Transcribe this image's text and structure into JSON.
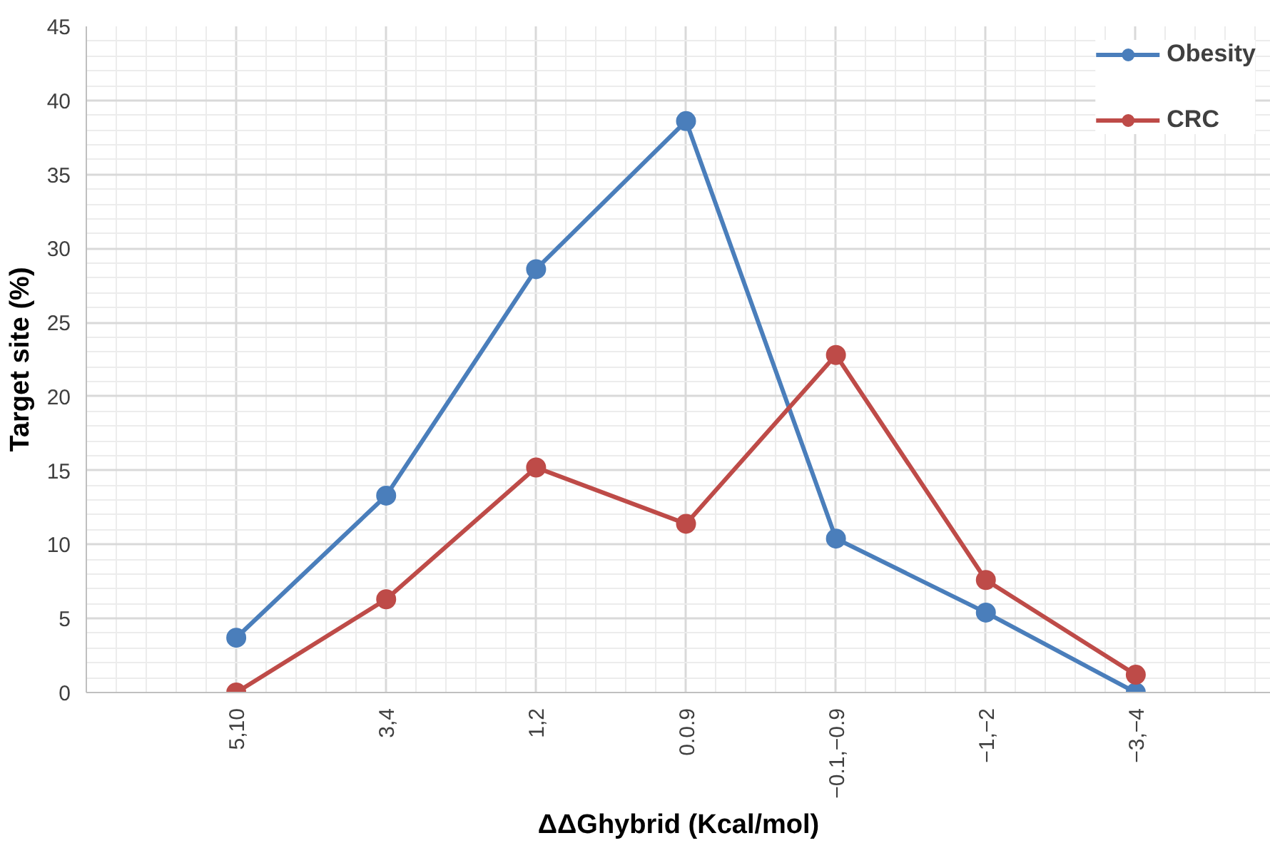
{
  "chart_data": {
    "type": "line",
    "xlabel": "ΔΔGhybrid (Kcal/mol)",
    "ylabel": "Target site (%)",
    "categories": [
      "5,10",
      "3,4",
      "1,2",
      "0.0.9",
      "−0.1,−0.9",
      "−1,−2",
      "−3,−4"
    ],
    "series": [
      {
        "name": "Obesity",
        "color": "#4a7ebb",
        "values": [
          3.7,
          13.3,
          28.6,
          38.6,
          10.4,
          5.4,
          0
        ]
      },
      {
        "name": "CRC",
        "color": "#be4b48",
        "values": [
          0,
          6.3,
          15.2,
          11.4,
          22.8,
          7.6,
          1.2
        ]
      }
    ],
    "ylim": [
      0,
      45
    ],
    "yticks": [
      0,
      5,
      10,
      15,
      20,
      25,
      30,
      35,
      40,
      45
    ],
    "grid": true,
    "legend": "top right",
    "marker": "circle",
    "line_style": "solid"
  }
}
